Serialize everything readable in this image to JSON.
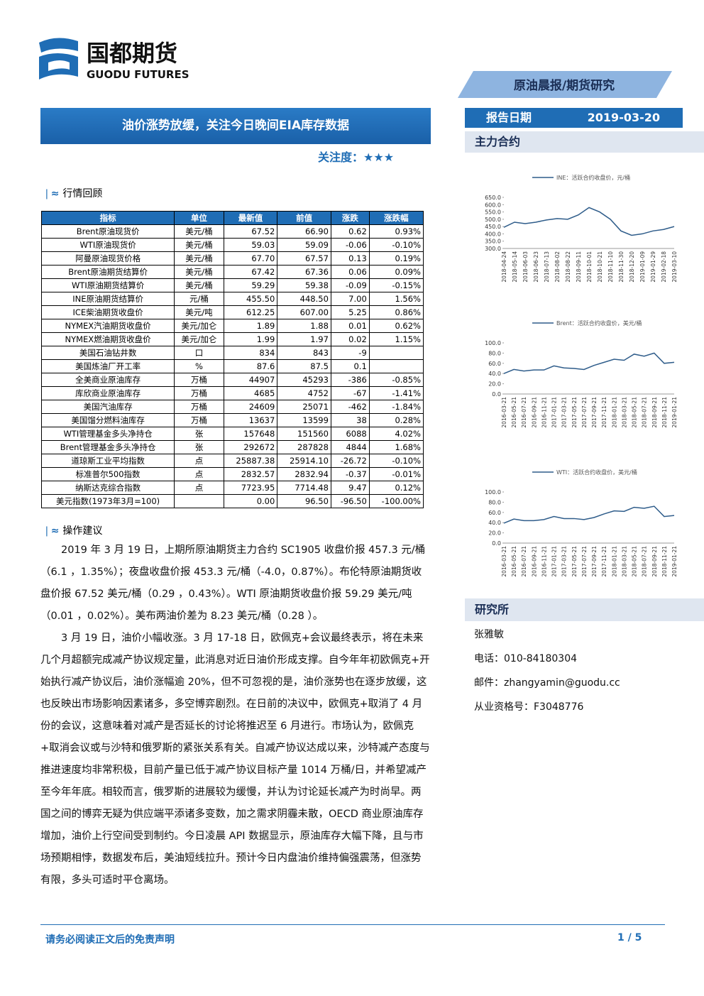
{
  "header": {
    "logo_cn": "国都期货",
    "logo_en": "GUODU FUTURES",
    "banner": "原油晨报/期货研究",
    "report_date_label": "报告日期",
    "report_date": "2019-03-20"
  },
  "title": "油价涨势放缓，关注今日晚间EIA库存数据",
  "attention": {
    "label": "关注度：",
    "stars": "★★★"
  },
  "section1": "行情回顾",
  "table": {
    "header": [
      "指标",
      "单位",
      "最新值",
      "前值",
      "涨跌",
      "涨跌幅"
    ],
    "rows": [
      [
        "Brent原油现货价",
        "美元/桶",
        "67.52",
        "66.90",
        "0.62",
        "0.93%"
      ],
      [
        "WTI原油现货价",
        "美元/桶",
        "59.03",
        "59.09",
        "-0.06",
        "-0.10%"
      ],
      [
        "阿曼原油现货价格",
        "美元/桶",
        "67.70",
        "67.57",
        "0.13",
        "0.19%"
      ],
      [
        "Brent原油期货结算价",
        "美元/桶",
        "67.42",
        "67.36",
        "0.06",
        "0.09%"
      ],
      [
        "WTI原油期货结算价",
        "美元/桶",
        "59.29",
        "59.38",
        "-0.09",
        "-0.15%"
      ],
      [
        "INE原油期货结算价",
        "元/桶",
        "455.50",
        "448.50",
        "7.00",
        "1.56%"
      ],
      [
        "ICE柴油期货收盘价",
        "美元/吨",
        "612.25",
        "607.00",
        "5.25",
        "0.86%"
      ],
      [
        "NYMEX汽油期货收盘价",
        "美元/加仑",
        "1.89",
        "1.88",
        "0.01",
        "0.62%"
      ],
      [
        "NYMEX燃油期货收盘价",
        "美元/加仑",
        "1.99",
        "1.97",
        "0.02",
        "1.15%"
      ],
      [
        "美国石油钻井数",
        "口",
        "834",
        "843",
        "-9",
        null
      ],
      [
        "美国炼油厂开工率",
        "%",
        "87.6",
        "87.5",
        "0.1",
        null
      ],
      [
        "全美商业原油库存",
        "万桶",
        "44907",
        "45293",
        "-386",
        "-0.85%"
      ],
      [
        "库欣商业原油库存",
        "万桶",
        "4685",
        "4752",
        "-67",
        "-1.41%"
      ],
      [
        "美国汽油库存",
        "万桶",
        "24609",
        "25071",
        "-462",
        "-1.84%"
      ],
      [
        "美国馏分燃料油库存",
        "万桶",
        "13637",
        "13599",
        "38",
        "0.28%"
      ],
      [
        "WTI管理基金多头净持仓",
        "张",
        "157648",
        "151560",
        "6088",
        "4.02%"
      ],
      [
        "Brent管理基金多头净持仓",
        "张",
        "292672",
        "287828",
        "4844",
        "1.68%"
      ],
      [
        "道琼斯工业平均指数",
        "点",
        "25887.38",
        "25914.10",
        "-26.72",
        "-0.10%"
      ],
      [
        "标准普尔500指数",
        "点",
        "2832.57",
        "2832.94",
        "-0.37",
        "-0.01%"
      ],
      [
        "纳斯达克综合指数",
        "点",
        "7723.95",
        "7714.48",
        "9.47",
        "0.12%"
      ],
      [
        "美元指数(1973年3月=100)",
        null,
        "0.00",
        "96.50",
        "-96.50",
        "-100.00%"
      ]
    ]
  },
  "section2": "操作建议",
  "paragraphs": [
    "2019 年 3 月 19 日，上期所原油期货主力合约 SC1905 收盘价报 457.3 元/桶（6.1 ，1.35%）；夜盘收盘价报 453.3 元/桶（-4.0，0.87%）。布伦特原油期货收盘价报 67.52 美元/桶（0.29 ，0.43%）。WTI 原油期货收盘价报 59.29 美元/吨（0.01 ，0.02%）。美布两油价差为 8.23 美元/桶（0.28 ）。",
    "3 月 19 日，油价小幅收涨。3 月 17-18 日，欧佩克+会议最终表示，将在未来几个月超额完成减产协议规定量，此消息对近日油价形成支撑。自今年年初欧佩克+开始执行减产协议后，油价涨幅逾 20%，但不可忽视的是，油价涨势也在逐步放缓，这也反映出市场影响因素诸多，多空博弈剧烈。在日前的决议中，欧佩克+取消了 4 月份的会议，这意味着对减产是否延长的讨论将推迟至 6 月进行。市场认为，欧佩克+取消会议或与沙特和俄罗斯的紧张关系有关。自减产协议达成以来，沙特减产态度与推进速度均非常积极，目前产量已低于减产协议目标产量 1014 万桶/日，并希望减产至今年年底。相较而言，俄罗斯的进展较为缓慢，并认为讨论延长减产为时尚早。两国之间的博弈无疑为供应端平添诸多变数，加之需求阴霾未散，OECD 商业原油库存增加，油价上行空间受到制约。今日凌晨 API 数据显示，原油库存大幅下降，且与市场预期相悖，数据发布后，美油短线拉升。预计今日内盘油价维持偏强震荡，但涨势有限，多头可适时平仓离场。"
  ],
  "sidebar": {
    "contracts": "主力合约",
    "institute": "研究所",
    "analyst": "张雅敏",
    "phone": "电话：010-84180304",
    "email": "邮件：zhangyamin@guodu.cc",
    "license": "从业资格号：F3048776"
  },
  "chart_data": [
    {
      "type": "line",
      "categories": [
        "2018-04-24",
        "2018-05-14",
        "2018-06-03",
        "2018-06-23",
        "2018-07-13",
        "2018-08-02",
        "2018-08-22",
        "2018-09-11",
        "2018-10-01",
        "2018-10-21",
        "2018-11-10",
        "2018-11-30",
        "2018-12-20",
        "2019-01-09",
        "2019-01-29",
        "2019-02-18",
        "2019-03-10"
      ],
      "series": [
        {
          "name": "INE：活跃合约收盘价，元/桶",
          "color": "#2e5c8a",
          "values": [
            445,
            480,
            470,
            480,
            495,
            505,
            500,
            530,
            580,
            550,
            500,
            420,
            390,
            400,
            420,
            430,
            450
          ]
        }
      ],
      "ylim": [
        300,
        650
      ],
      "yticks": [
        {
          "value": 300,
          "label": "300.0"
        },
        {
          "value": 350,
          "label": "350.0"
        },
        {
          "value": 400,
          "label": "400.0"
        },
        {
          "value": 450,
          "label": "450.0"
        },
        {
          "value": 500,
          "label": "500.0"
        },
        {
          "value": 550,
          "label": "550.0"
        },
        {
          "value": 600,
          "label": "600.0"
        },
        {
          "value": 650,
          "label": "650.0"
        }
      ]
    },
    {
      "type": "line",
      "categories": [
        "2016-03-21",
        "2016-05-21",
        "2016-07-21",
        "2016-09-21",
        "2016-11-21",
        "2017-01-21",
        "2017-03-21",
        "2017-05-21",
        "2017-07-21",
        "2017-09-21",
        "2017-11-21",
        "2018-01-21",
        "2018-03-21",
        "2018-05-21",
        "2018-07-21",
        "2018-09-21",
        "2018-11-21",
        "2019-01-21"
      ],
      "series": [
        {
          "name": "Brent：活跃合约收盘价，美元/桶",
          "color": "#2e5c8a",
          "values": [
            40,
            48,
            45,
            47,
            47,
            55,
            51,
            50,
            48,
            56,
            62,
            68,
            66,
            78,
            74,
            80,
            60,
            62
          ]
        }
      ],
      "ylim": [
        0,
        100
      ],
      "yticks": [
        {
          "value": 0,
          "label": "0.0"
        },
        {
          "value": 20,
          "label": "20.0"
        },
        {
          "value": 40,
          "label": "40.0"
        },
        {
          "value": 60,
          "label": "60.0"
        },
        {
          "value": 80,
          "label": "80.0"
        },
        {
          "value": 100,
          "label": "100.0"
        }
      ]
    },
    {
      "type": "line",
      "categories": [
        "2016-03-21",
        "2016-05-21",
        "2016-07-21",
        "2016-09-21",
        "2016-11-21",
        "2017-01-21",
        "2017-03-21",
        "2017-05-21",
        "2017-07-21",
        "2017-09-21",
        "2017-11-21",
        "2018-01-21",
        "2018-03-21",
        "2018-05-21",
        "2018-07-21",
        "2018-09-21",
        "2018-11-21",
        "2019-01-21"
      ],
      "series": [
        {
          "name": "WTI：活跃合约收盘价，美元/桶",
          "color": "#2e5c8a",
          "values": [
            39,
            47,
            44,
            44,
            46,
            52,
            48,
            48,
            46,
            50,
            57,
            63,
            62,
            70,
            68,
            72,
            52,
            54
          ]
        }
      ],
      "ylim": [
        0,
        100
      ],
      "yticks": [
        {
          "value": 0,
          "label": "0.0"
        },
        {
          "value": 20,
          "label": "20.0"
        },
        {
          "value": 40,
          "label": "40.0"
        },
        {
          "value": 60,
          "label": "60.0"
        },
        {
          "value": 80,
          "label": "80.0"
        },
        {
          "value": 100,
          "label": "100.0"
        }
      ]
    }
  ],
  "footer": {
    "disclaimer": "请务必阅读正文后的免责声明",
    "page": "1 / 5"
  }
}
